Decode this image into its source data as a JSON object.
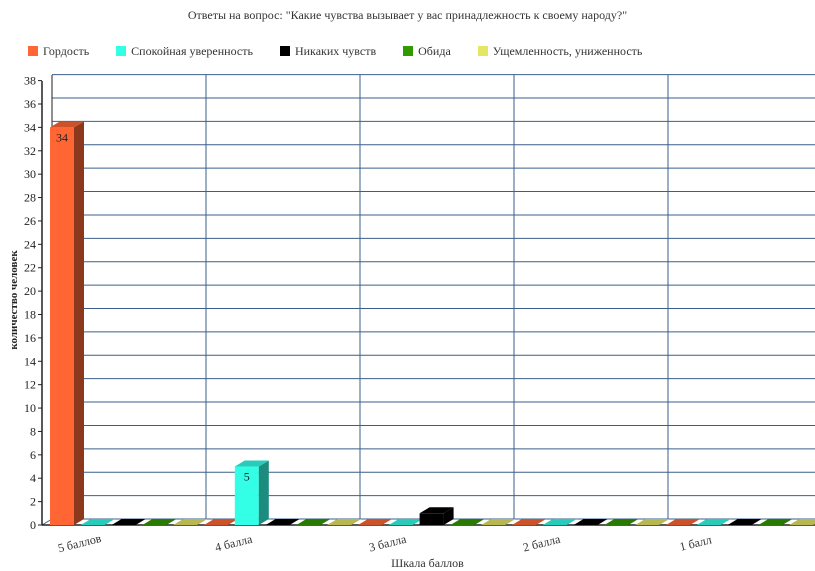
{
  "chart_data": {
    "type": "bar",
    "title": "Ответы на вопрос: \"Какие чувства вызывает у вас принадлежность к своему народу?\"",
    "xlabel": "Шкала баллов",
    "ylabel": "количество человек",
    "ylim": [
      0,
      38
    ],
    "ytick_step": 2,
    "yticks": [
      "0",
      "2",
      "4",
      "6",
      "8",
      "10",
      "12",
      "14",
      "16",
      "18",
      "20",
      "22",
      "24",
      "26",
      "28",
      "30",
      "32",
      "34",
      "36",
      "38"
    ],
    "grid": true,
    "legend_position": "top",
    "categories": [
      "5 баллов",
      "4 балла",
      "3 балла",
      "2 балла",
      "1 балл"
    ],
    "series": [
      {
        "name": "Гордость",
        "color": "#ff6633",
        "values": [
          34,
          0,
          0,
          0,
          0
        ]
      },
      {
        "name": "Спокойная уверенность",
        "color": "#33ffe6",
        "values": [
          0,
          5,
          0,
          0,
          0
        ]
      },
      {
        "name": "Никаких чувств",
        "color": "#000000",
        "values": [
          0,
          0,
          1,
          0,
          0
        ]
      },
      {
        "name": "Обида",
        "color": "#339900",
        "values": [
          0,
          0,
          0,
          0,
          0
        ]
      },
      {
        "name": "Ущемленность, униженность",
        "color": "#e6e666",
        "values": [
          0,
          0,
          0,
          0,
          0
        ]
      }
    ],
    "data_labels": [
      {
        "series": 0,
        "category": 0,
        "text": "34"
      },
      {
        "series": 1,
        "category": 1,
        "text": "5"
      }
    ]
  }
}
